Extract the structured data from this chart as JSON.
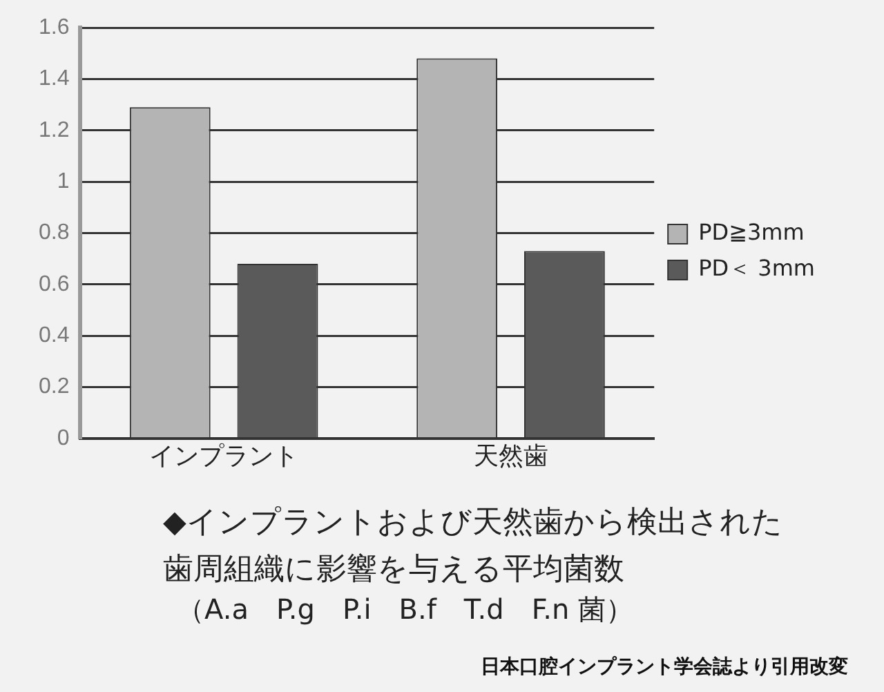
{
  "chart_data": {
    "type": "bar",
    "title": "◆インプラントおよび天然歯から検出された歯周組織に影響を与える平均菌数",
    "subtitle": "（A.a　P.g　P.i　B.f　T.d　F.n 菌）",
    "annotations": [
      "日本口腔インプラント学会誌より引用改変"
    ],
    "categories": [
      "インプラント",
      "天然歯"
    ],
    "series": [
      {
        "name": "PD≧3mm",
        "color": "#b4b4b4",
        "values": [
          1.29,
          1.48
        ]
      },
      {
        "name": "PD＜ 3mm",
        "color": "#5a5a5a",
        "values": [
          0.68,
          0.73
        ]
      }
    ],
    "ylim": [
      0,
      1.6
    ],
    "yticks": [
      0,
      0.2,
      0.4,
      0.6,
      0.8,
      1,
      1.2,
      1.4,
      1.6
    ],
    "grid": "y",
    "legend": "right"
  }
}
